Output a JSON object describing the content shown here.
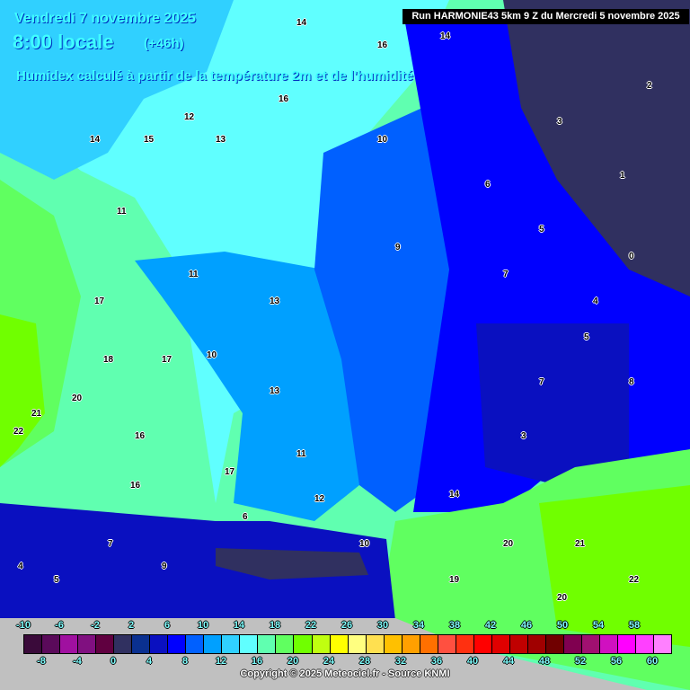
{
  "header": {
    "date": "Vendredi 7 novembre 2025",
    "time": "8:00 locale",
    "lead": "(+46h)",
    "description": "Humidex calculé à partir de la température 2m et de l'humidité",
    "run": "Run HARMONIE43 5km 9 Z du Mercredi 5 novembre 2025"
  },
  "map_values": [
    "14",
    "13",
    "11",
    "10",
    "9",
    "14",
    "15",
    "16",
    "16",
    "14",
    "12",
    "11",
    "13",
    "10",
    "6",
    "3",
    "1",
    "0",
    "5",
    "7",
    "17",
    "17",
    "18",
    "20",
    "21",
    "22",
    "17",
    "16",
    "16",
    "13",
    "11",
    "12",
    "9",
    "7",
    "5",
    "4",
    "6",
    "10",
    "19",
    "20",
    "21",
    "22",
    "20",
    "14",
    "7",
    "8",
    "5",
    "2",
    "4",
    "3"
  ],
  "colorbar": {
    "top_labels": [
      "-10",
      "-6",
      "-2",
      "2",
      "6",
      "10",
      "14",
      "18",
      "22",
      "26",
      "30",
      "34",
      "38",
      "42",
      "46",
      "50",
      "54",
      "58"
    ],
    "bottom_labels": [
      "-8",
      "-4",
      "0",
      "4",
      "8",
      "12",
      "16",
      "20",
      "24",
      "28",
      "32",
      "36",
      "40",
      "44",
      "48",
      "52",
      "56",
      "60"
    ],
    "colors": [
      "#3a0a3a",
      "#5a0a5a",
      "#a010a0",
      "#801080",
      "#600040",
      "#303060",
      "#0a3090",
      "#0a10c0",
      "#0000ff",
      "#0060ff",
      "#00a0ff",
      "#30d0ff",
      "#60ffff",
      "#60ffb0",
      "#60ff60",
      "#70ff00",
      "#c0ff10",
      "#ffff00",
      "#ffff80",
      "#ffe050",
      "#ffc000",
      "#ffa000",
      "#ff7000",
      "#ff5040",
      "#ff3010",
      "#ff0000",
      "#e00000",
      "#c00000",
      "#a00000",
      "#700000",
      "#800050",
      "#a01070",
      "#d010c0",
      "#ff00ff",
      "#ff40ff",
      "#ff80ff"
    ]
  },
  "copyright": "Copyright © 2025 Meteociel.fr - Source KNMI"
}
